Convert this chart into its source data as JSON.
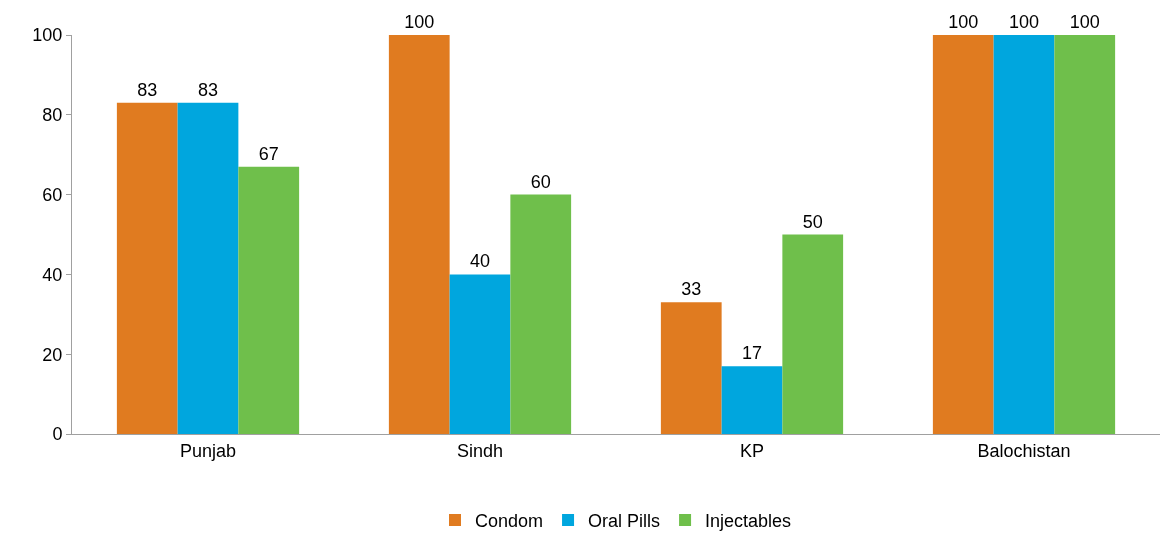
{
  "chart_data": {
    "type": "bar",
    "categories": [
      "Punjab",
      "Sindh",
      "KP",
      "Balochistan"
    ],
    "series": [
      {
        "name": "Condom",
        "color": "#e07b20",
        "values": [
          83,
          100,
          33,
          100
        ]
      },
      {
        "name": "Oral Pills",
        "color": "#00a6de",
        "values": [
          83,
          40,
          17,
          100
        ]
      },
      {
        "name": "Injectables",
        "color": "#6fbf4b",
        "values": [
          67,
          60,
          50,
          100
        ]
      }
    ],
    "ylim": [
      0,
      100
    ],
    "yticks": [
      0,
      20,
      40,
      60,
      80,
      100
    ],
    "grid": false,
    "legend": "bottom",
    "data_labels": true
  }
}
